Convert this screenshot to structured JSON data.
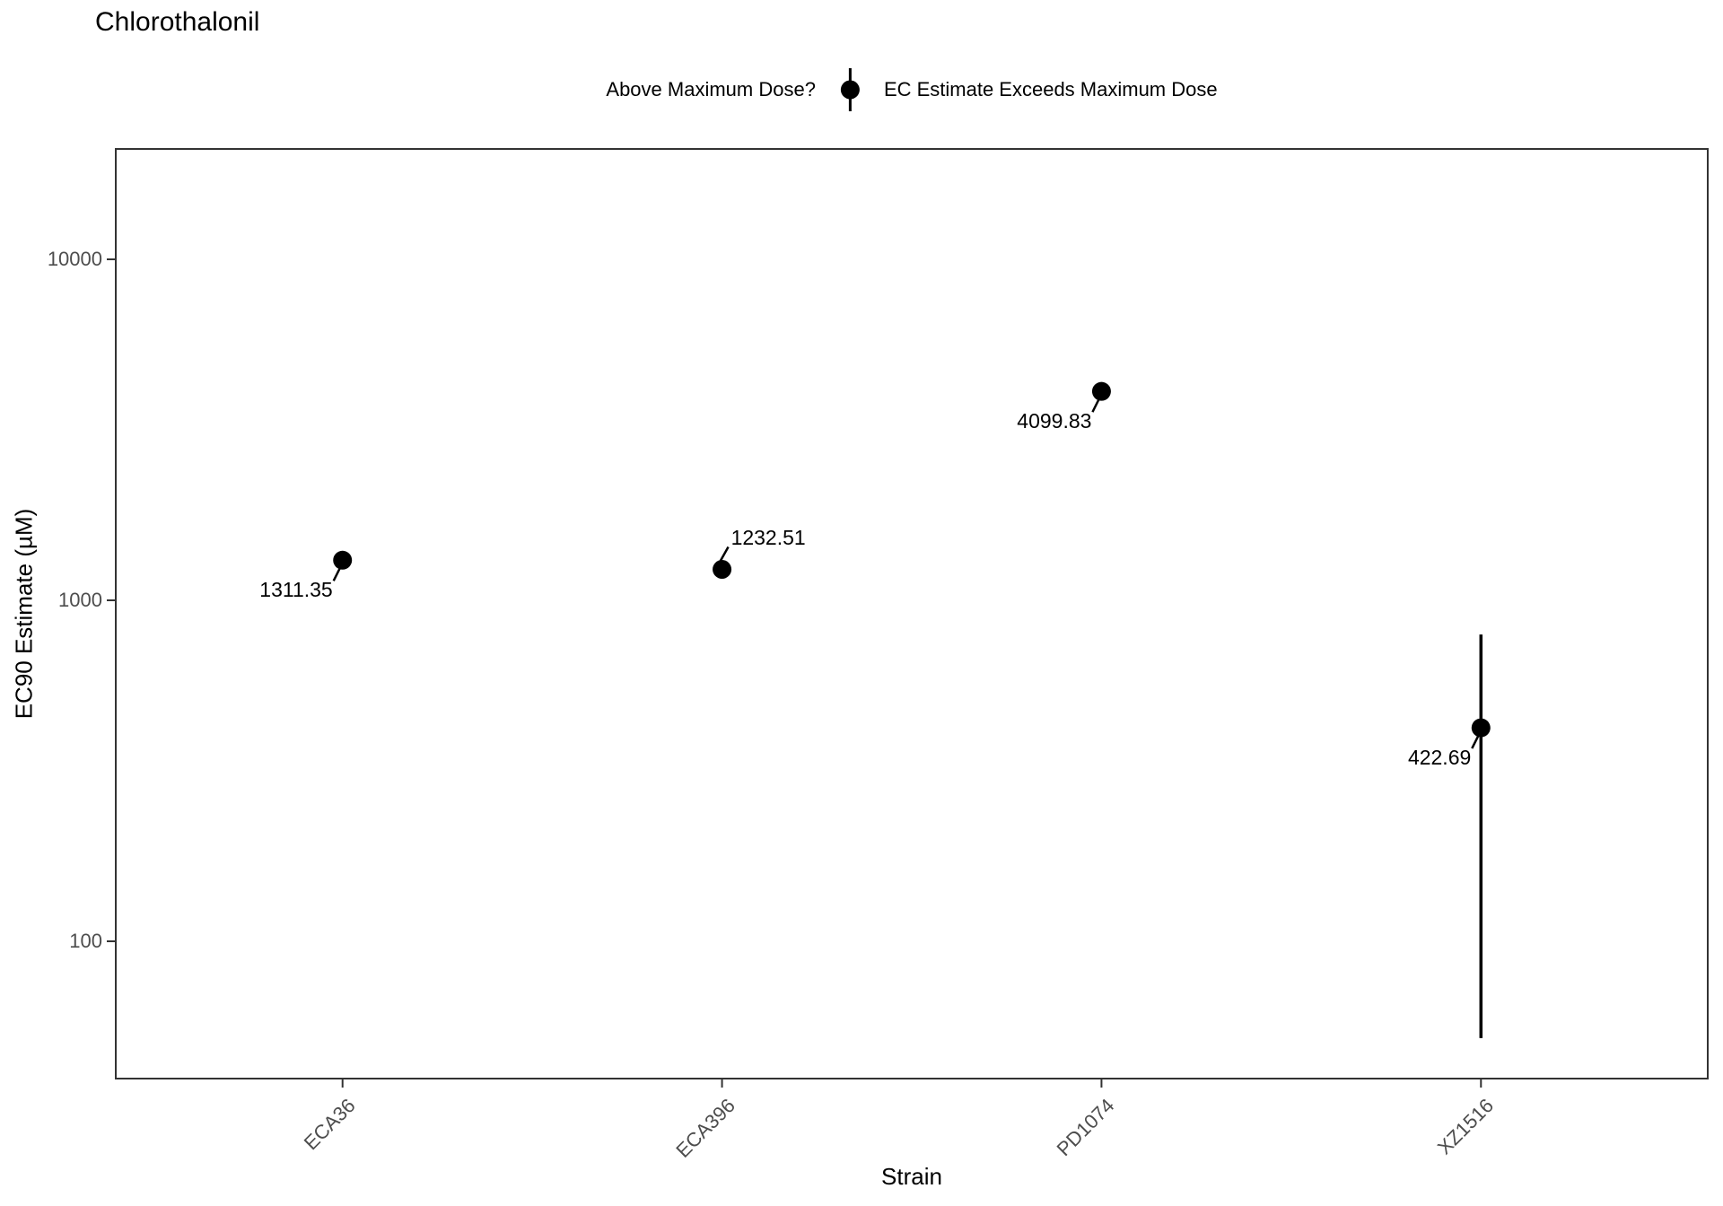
{
  "chart_data": {
    "type": "scatter",
    "title": "Chlorothalonil",
    "legend": {
      "position": "top-center",
      "title": "Above Maximum Dose?",
      "entries": [
        {
          "symbol": "pointrange",
          "color": "#000000",
          "label": "EC Estimate Exceeds Maximum Dose"
        }
      ]
    },
    "x_axis": {
      "label": "Strain",
      "categories": [
        "ECA36",
        "ECA396",
        "PD1074",
        "XZ1516"
      ],
      "tick_angle_deg": 45
    },
    "y_axis": {
      "label": "EC90 Estimate (µM)",
      "scale": "log10",
      "ticks": [
        10000,
        1000,
        100
      ],
      "range": [
        40,
        21000
      ]
    },
    "grid": false,
    "series": [
      {
        "strain": "ECA36",
        "ec90": 1311.35,
        "label": "1311.35",
        "ymin": null,
        "ymax": null,
        "label_side": "below-left"
      },
      {
        "strain": "ECA396",
        "ec90": 1232.51,
        "label": "1232.51",
        "ymin": null,
        "ymax": null,
        "label_side": "above-right"
      },
      {
        "strain": "PD1074",
        "ec90": 4099.83,
        "label": "4099.83",
        "ymin": null,
        "ymax": null,
        "label_side": "below-left"
      },
      {
        "strain": "XZ1516",
        "ec90": 422.69,
        "label": "422.69",
        "ymin": 52,
        "ymax": 794,
        "label_side": "below-left"
      }
    ],
    "colors": {
      "point": "#000000",
      "error_bar": "#000000",
      "axis_text": "#4d4d4d",
      "axis_title": "#000000",
      "panel_border": "#333333",
      "background": "#ffffff"
    }
  }
}
